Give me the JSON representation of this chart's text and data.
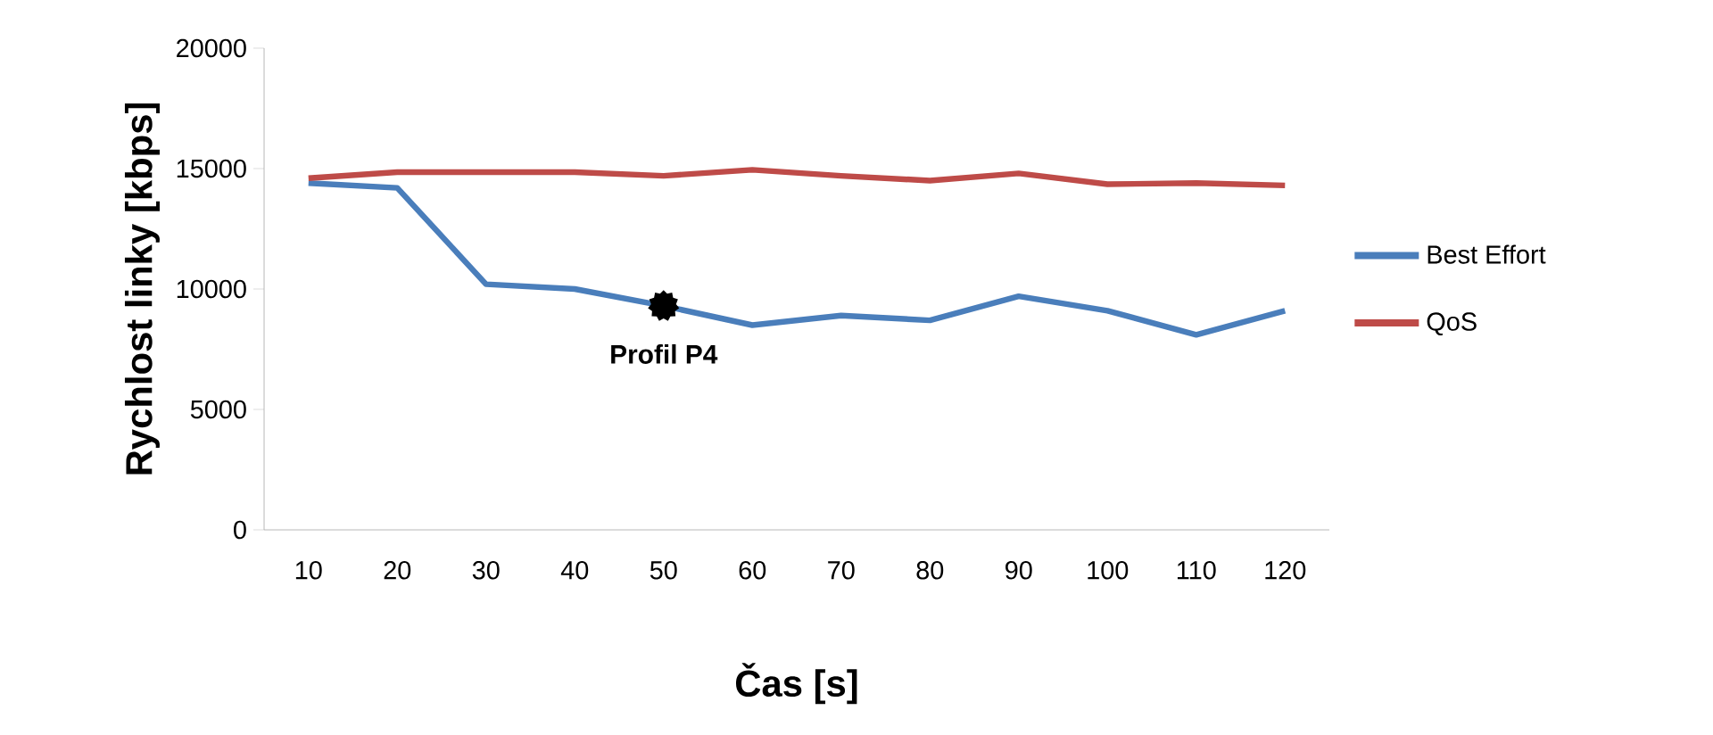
{
  "chart_data": {
    "type": "line",
    "xlabel": "Čas [s]",
    "ylabel": "Rychlost linky [kbps]",
    "categories": [
      "10",
      "20",
      "30",
      "40",
      "50",
      "60",
      "70",
      "80",
      "90",
      "100",
      "110",
      "120"
    ],
    "series": [
      {
        "name": "Best Effort",
        "color": "#4a7ebb",
        "values": [
          14400,
          14200,
          10200,
          10000,
          9300,
          8500,
          8900,
          8700,
          9700,
          9100,
          8100,
          9100
        ]
      },
      {
        "name": "QoS",
        "color": "#be4b48",
        "values": [
          14600,
          14850,
          14850,
          14850,
          14700,
          14950,
          14700,
          14500,
          14800,
          14350,
          14400,
          14300
        ]
      }
    ],
    "ylim": [
      0,
      20000
    ],
    "yticks": [
      0,
      5000,
      10000,
      15000,
      20000
    ],
    "grid": false,
    "legend": "right",
    "marker": "none",
    "line_style": "solid",
    "annotations": [
      {
        "text": "Profil P4",
        "x": "50",
        "y": 9300
      }
    ]
  }
}
